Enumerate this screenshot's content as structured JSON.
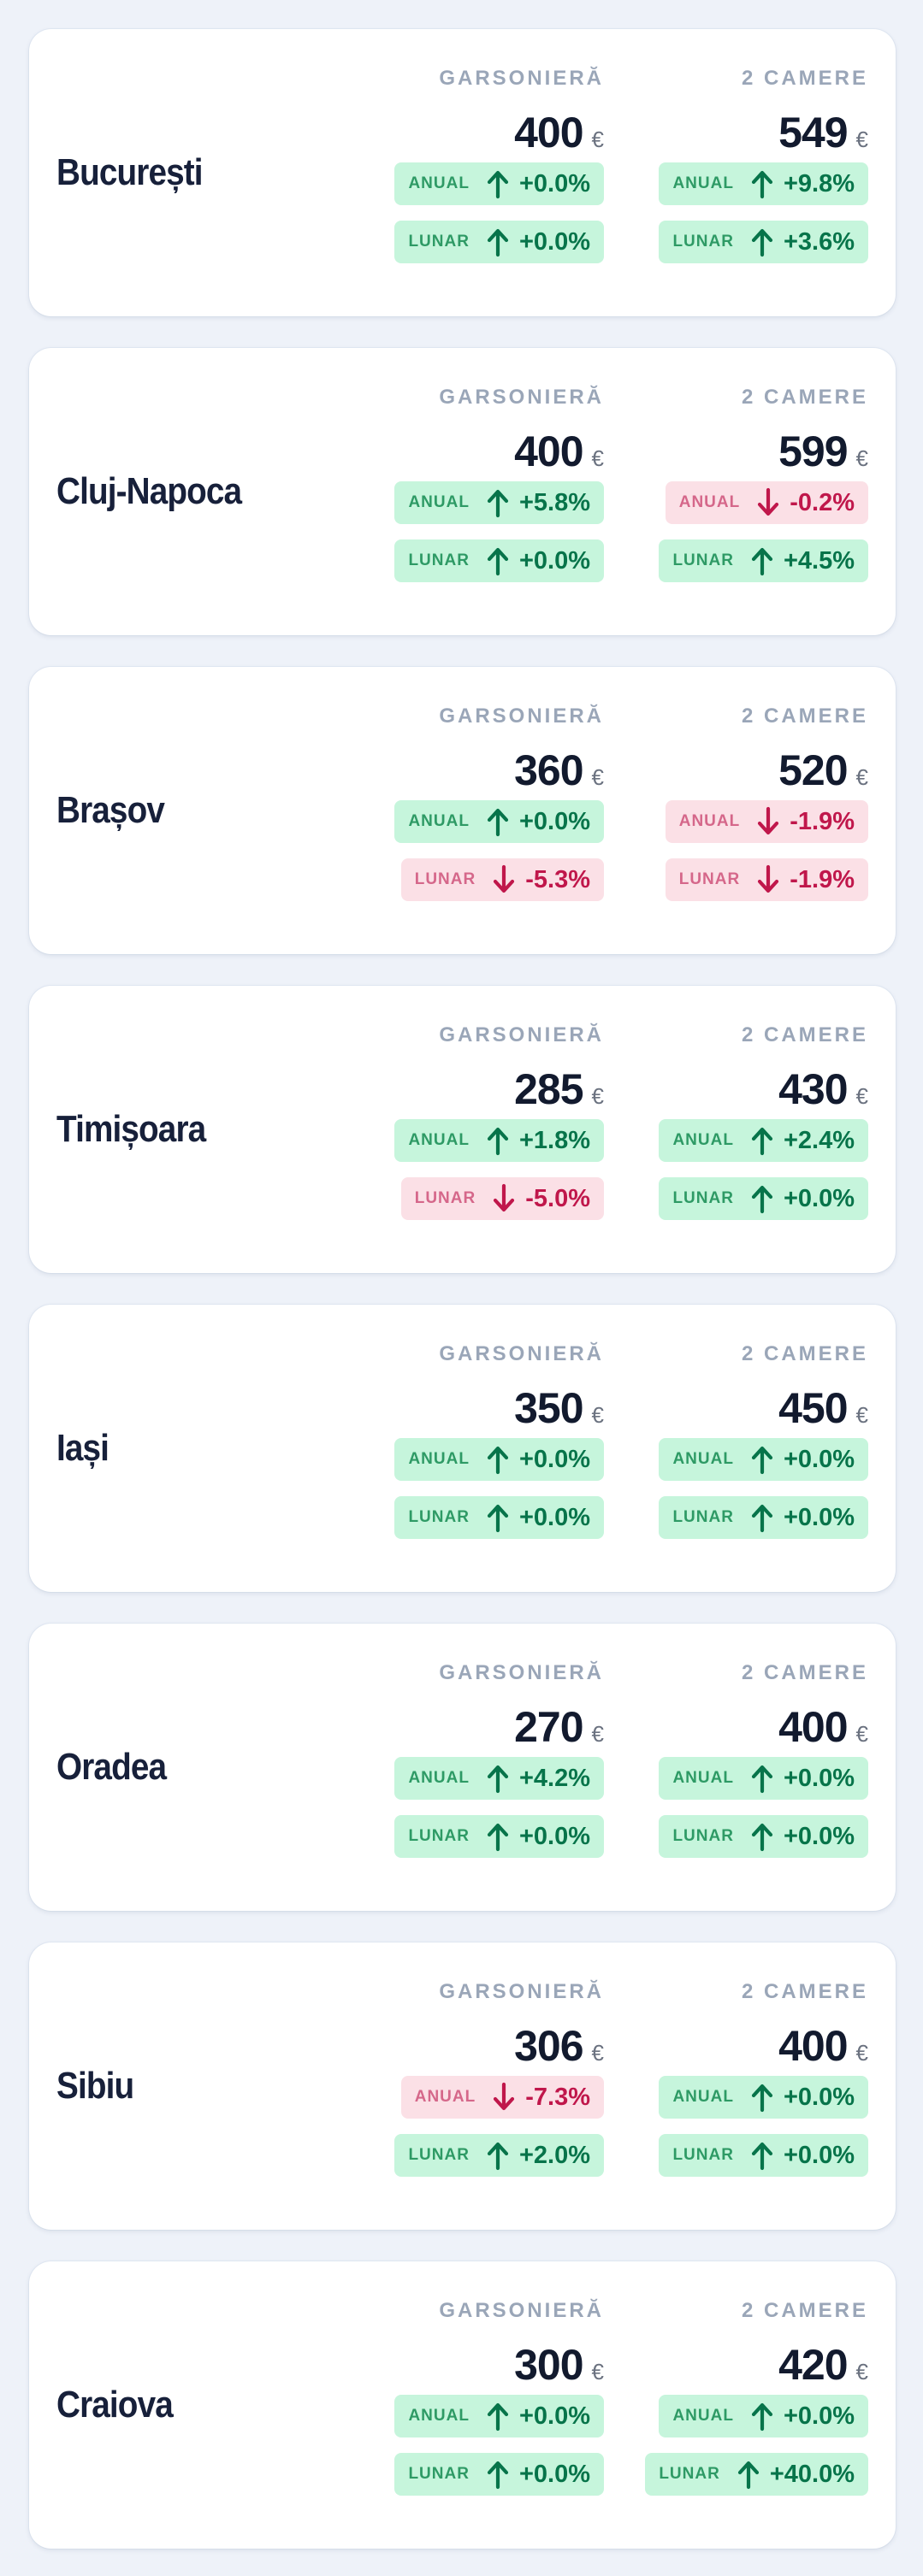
{
  "colors": {
    "background": "#eef2f9",
    "card": "#ffffff",
    "up_bg": "#c6f5dc",
    "up_text": "#07744a",
    "down_bg": "#fbe0e6",
    "down_text": "#c0174b"
  },
  "columns": [
    "GARSONIERĂ",
    "2 CAMERE"
  ],
  "currency": "€",
  "labels": {
    "annual": "ANUAL",
    "monthly": "LUNAR"
  },
  "cities": [
    {
      "name": "București",
      "units": [
        {
          "price": "400",
          "annual": {
            "value": "+0.0%",
            "dir": "up"
          },
          "monthly": {
            "value": "+0.0%",
            "dir": "up"
          }
        },
        {
          "price": "549",
          "annual": {
            "value": "+9.8%",
            "dir": "up"
          },
          "monthly": {
            "value": "+3.6%",
            "dir": "up"
          }
        }
      ]
    },
    {
      "name": "Cluj-Napoca",
      "units": [
        {
          "price": "400",
          "annual": {
            "value": "+5.8%",
            "dir": "up"
          },
          "monthly": {
            "value": "+0.0%",
            "dir": "up"
          }
        },
        {
          "price": "599",
          "annual": {
            "value": "-0.2%",
            "dir": "down"
          },
          "monthly": {
            "value": "+4.5%",
            "dir": "up"
          }
        }
      ]
    },
    {
      "name": "Brașov",
      "units": [
        {
          "price": "360",
          "annual": {
            "value": "+0.0%",
            "dir": "up"
          },
          "monthly": {
            "value": "-5.3%",
            "dir": "down"
          }
        },
        {
          "price": "520",
          "annual": {
            "value": "-1.9%",
            "dir": "down"
          },
          "monthly": {
            "value": "-1.9%",
            "dir": "down"
          }
        }
      ]
    },
    {
      "name": "Timișoara",
      "units": [
        {
          "price": "285",
          "annual": {
            "value": "+1.8%",
            "dir": "up"
          },
          "monthly": {
            "value": "-5.0%",
            "dir": "down"
          }
        },
        {
          "price": "430",
          "annual": {
            "value": "+2.4%",
            "dir": "up"
          },
          "monthly": {
            "value": "+0.0%",
            "dir": "up"
          }
        }
      ]
    },
    {
      "name": "Iași",
      "units": [
        {
          "price": "350",
          "annual": {
            "value": "+0.0%",
            "dir": "up"
          },
          "monthly": {
            "value": "+0.0%",
            "dir": "up"
          }
        },
        {
          "price": "450",
          "annual": {
            "value": "+0.0%",
            "dir": "up"
          },
          "monthly": {
            "value": "+0.0%",
            "dir": "up"
          }
        }
      ]
    },
    {
      "name": "Oradea",
      "units": [
        {
          "price": "270",
          "annual": {
            "value": "+4.2%",
            "dir": "up"
          },
          "monthly": {
            "value": "+0.0%",
            "dir": "up"
          }
        },
        {
          "price": "400",
          "annual": {
            "value": "+0.0%",
            "dir": "up"
          },
          "monthly": {
            "value": "+0.0%",
            "dir": "up"
          }
        }
      ]
    },
    {
      "name": "Sibiu",
      "units": [
        {
          "price": "306",
          "annual": {
            "value": "-7.3%",
            "dir": "down"
          },
          "monthly": {
            "value": "+2.0%",
            "dir": "up"
          }
        },
        {
          "price": "400",
          "annual": {
            "value": "+0.0%",
            "dir": "up"
          },
          "monthly": {
            "value": "+0.0%",
            "dir": "up"
          }
        }
      ]
    },
    {
      "name": "Craiova",
      "units": [
        {
          "price": "300",
          "annual": {
            "value": "+0.0%",
            "dir": "up"
          },
          "monthly": {
            "value": "+0.0%",
            "dir": "up"
          }
        },
        {
          "price": "420",
          "annual": {
            "value": "+0.0%",
            "dir": "up"
          },
          "monthly": {
            "value": "+40.0%",
            "dir": "up"
          }
        }
      ]
    }
  ]
}
